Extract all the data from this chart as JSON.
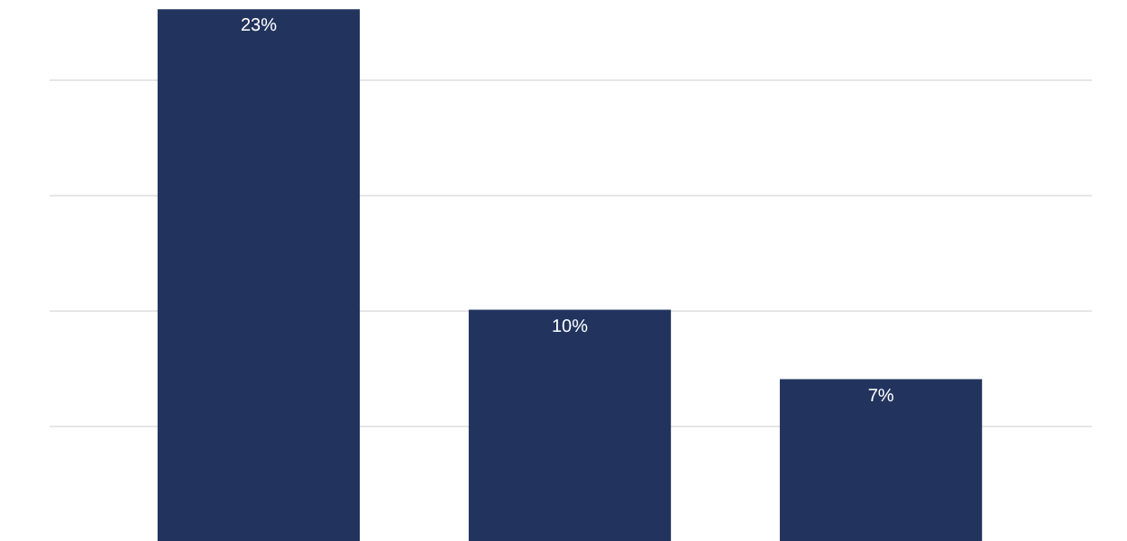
{
  "chart_data": {
    "type": "bar",
    "categories": [
      null,
      null,
      null
    ],
    "values": [
      23,
      10,
      7
    ],
    "value_labels": [
      "23%",
      "10%",
      "7%"
    ],
    "color": "#22345e",
    "ylim": [
      0,
      23.4
    ],
    "yticks": [
      {
        "value": 5,
        "label": null
      },
      {
        "value": 10,
        "label": null
      },
      {
        "value": 15,
        "label": null
      },
      {
        "value": 20,
        "label": null
      }
    ],
    "grid": "y"
  }
}
